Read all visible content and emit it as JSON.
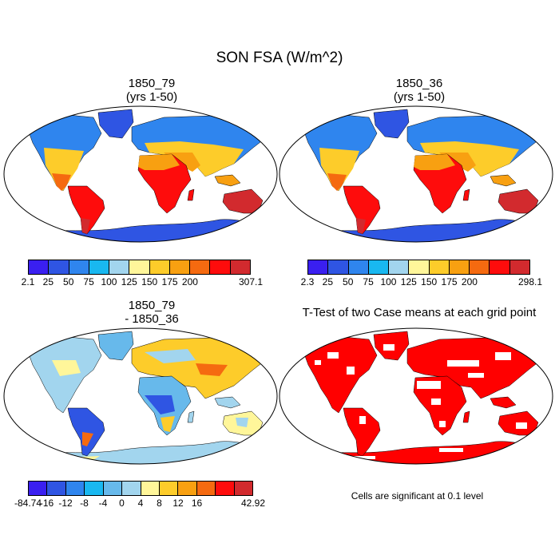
{
  "title": "SON FSA (W/m^2)",
  "panels": [
    {
      "title_line1": "1850_79",
      "title_line2": "(yrs 1-50)",
      "colorbar_labels": [
        "2.1",
        "25",
        "50",
        "75",
        "100",
        "125",
        "150",
        "175",
        "200",
        "307.1"
      ]
    },
    {
      "title_line1": "1850_36",
      "title_line2": "(yrs 1-50)",
      "colorbar_labels": [
        "2.3",
        "25",
        "50",
        "75",
        "100",
        "125",
        "150",
        "175",
        "200",
        "298.1"
      ]
    },
    {
      "title_line1": "1850_79",
      "title_line2": "- 1850_36",
      "colorbar_labels": [
        "-84.74",
        "-16",
        "-12",
        "-8",
        "-4",
        "0",
        "4",
        "8",
        "12",
        "16",
        "42.92"
      ]
    },
    {
      "title_line1": "T-Test of two Case means at each grid point",
      "note": "Cells are significant at 0.1 level"
    }
  ],
  "colors": {
    "abs_scale": [
      "#3a1ff0",
      "#2f55e3",
      "#2f85ee",
      "#19b8f0",
      "#a2d5ee",
      "#fff69a",
      "#fdcc2a",
      "#f8a011",
      "#f56a10",
      "#fe0c0c",
      "#d22a2e"
    ],
    "diff_scale": [
      "#3a1ff0",
      "#2f55e3",
      "#2f85ee",
      "#19b8f0",
      "#67b9eb",
      "#a2d5ee",
      "#fff69a",
      "#fdcc2a",
      "#f8a011",
      "#f56a10",
      "#fe0c0c",
      "#d22a2e"
    ],
    "significant": "#ff0000"
  }
}
